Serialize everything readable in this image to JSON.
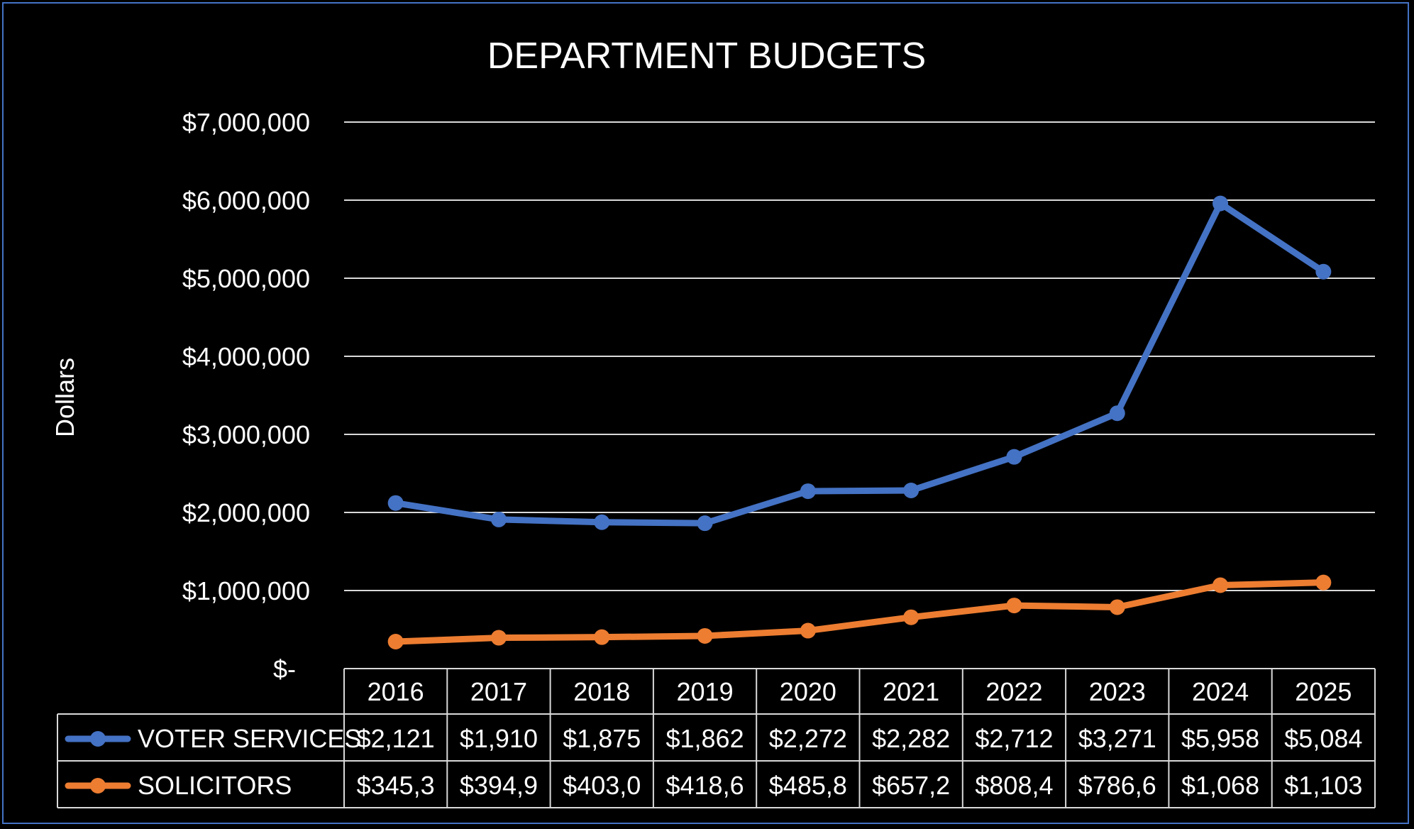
{
  "chart_data": {
    "type": "line",
    "title": "DEPARTMENT BUDGETS",
    "ylabel": "Dollars",
    "xlabel": "",
    "ylim": [
      0,
      7000000
    ],
    "yticks": [
      0,
      1000000,
      2000000,
      3000000,
      4000000,
      5000000,
      6000000,
      7000000
    ],
    "ytick_labels": [
      "$-",
      "$1,000,000",
      "$2,000,000",
      "$3,000,000",
      "$4,000,000",
      "$5,000,000",
      "$6,000,000",
      "$7,000,000"
    ],
    "grid": true,
    "legend": "data-table",
    "categories": [
      "2016",
      "2017",
      "2018",
      "2019",
      "2020",
      "2021",
      "2022",
      "2023",
      "2024",
      "2025"
    ],
    "series": [
      {
        "name": "VOTER SERVICES",
        "color": "#4472C4",
        "values": [
          2121000,
          1910000,
          1875000,
          1862000,
          2272000,
          2282000,
          2712000,
          3271000,
          5958000,
          5084000
        ],
        "table_labels": [
          "$2,121",
          "$1,910",
          "$1,875",
          "$1,862",
          "$2,272",
          "$2,282",
          "$2,712",
          "$3,271",
          "$5,958",
          "$5,084"
        ]
      },
      {
        "name": "SOLICITORS",
        "color": "#ED7D31",
        "values": [
          345300,
          394900,
          403000,
          418600,
          485800,
          657200,
          808400,
          786600,
          1068000,
          1103000
        ],
        "table_labels": [
          "$345,3",
          "$394,9",
          "$403,0",
          "$418,6",
          "$485,8",
          "$657,2",
          "$808,4",
          "$786,6",
          "$1,068",
          "$1,103"
        ]
      }
    ]
  }
}
